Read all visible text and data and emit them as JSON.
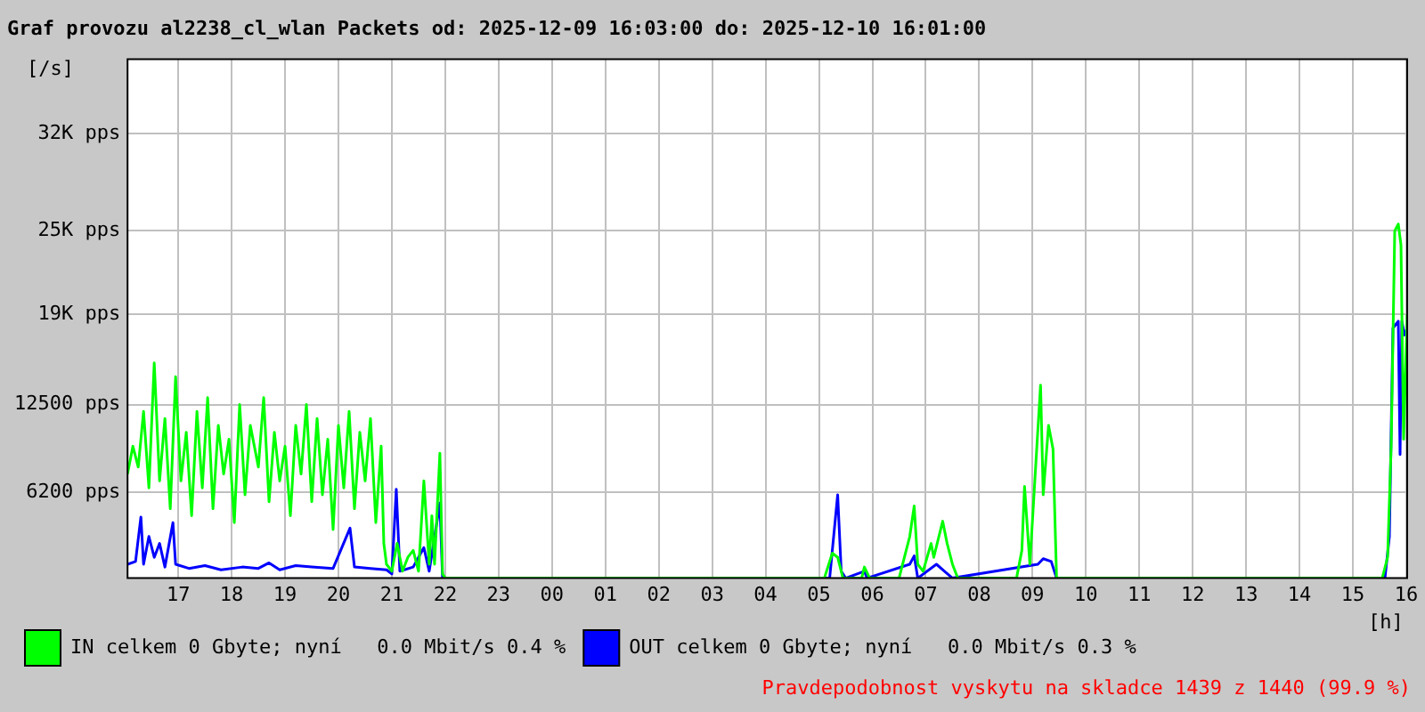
{
  "chart_data": {
    "type": "line",
    "title": "Graf provozu al2238_cl_wlan Packets od: 2025-12-09 16:03:00 do: 2025-12-10 16:01:00",
    "ylabel": "[/s]",
    "xlabel": "[h]",
    "xlim": [
      "2025-12-09T16:03",
      "2025-12-10T16:01"
    ],
    "ylim": [
      0,
      37375
    ],
    "xticks": [
      {
        "value": "2025-12-09T17:00",
        "label": "17"
      },
      {
        "value": "2025-12-09T18:00",
        "label": "18"
      },
      {
        "value": "2025-12-09T19:00",
        "label": "19"
      },
      {
        "value": "2025-12-09T20:00",
        "label": "20"
      },
      {
        "value": "2025-12-09T21:00",
        "label": "21"
      },
      {
        "value": "2025-12-09T22:00",
        "label": "22"
      },
      {
        "value": "2025-12-09T23:00",
        "label": "23"
      },
      {
        "value": "2025-12-10T00:00",
        "label": "00"
      },
      {
        "value": "2025-12-10T01:00",
        "label": "01"
      },
      {
        "value": "2025-12-10T02:00",
        "label": "02"
      },
      {
        "value": "2025-12-10T03:00",
        "label": "03"
      },
      {
        "value": "2025-12-10T04:00",
        "label": "04"
      },
      {
        "value": "2025-12-10T05:00",
        "label": "05"
      },
      {
        "value": "2025-12-10T06:00",
        "label": "06"
      },
      {
        "value": "2025-12-10T07:00",
        "label": "07"
      },
      {
        "value": "2025-12-10T08:00",
        "label": "08"
      },
      {
        "value": "2025-12-10T09:00",
        "label": "09"
      },
      {
        "value": "2025-12-10T10:00",
        "label": "10"
      },
      {
        "value": "2025-12-10T11:00",
        "label": "11"
      },
      {
        "value": "2025-12-10T12:00",
        "label": "12"
      },
      {
        "value": "2025-12-10T13:00",
        "label": "13"
      },
      {
        "value": "2025-12-10T14:00",
        "label": "14"
      },
      {
        "value": "2025-12-10T15:00",
        "label": "15"
      },
      {
        "value": "2025-12-10T16:00",
        "label": "16"
      }
    ],
    "yticks": [
      {
        "value": 6200,
        "label": "6200 pps"
      },
      {
        "value": 12500,
        "label": "12500 pps"
      },
      {
        "value": 19000,
        "label": "19K pps"
      },
      {
        "value": 25000,
        "label": "25K pps"
      },
      {
        "value": 32000,
        "label": "32K pps"
      }
    ],
    "grid": true,
    "legend": "bottom",
    "series": [
      {
        "name": "IN celkem 0 Gbyte; nyní   0.0 Mbit/s 0.4 %",
        "color": "#00ff00",
        "x": [
          "2025-12-09T16:03",
          "2025-12-09T16:09",
          "2025-12-09T16:15",
          "2025-12-09T16:21",
          "2025-12-09T16:27",
          "2025-12-09T16:33",
          "2025-12-09T16:39",
          "2025-12-09T16:45",
          "2025-12-09T16:51",
          "2025-12-09T16:57",
          "2025-12-09T17:03",
          "2025-12-09T17:09",
          "2025-12-09T17:15",
          "2025-12-09T17:21",
          "2025-12-09T17:27",
          "2025-12-09T17:33",
          "2025-12-09T17:39",
          "2025-12-09T17:45",
          "2025-12-09T17:51",
          "2025-12-09T17:57",
          "2025-12-09T18:03",
          "2025-12-09T18:09",
          "2025-12-09T18:15",
          "2025-12-09T18:21",
          "2025-12-09T18:30",
          "2025-12-09T18:36",
          "2025-12-09T18:42",
          "2025-12-09T18:48",
          "2025-12-09T18:54",
          "2025-12-09T19:00",
          "2025-12-09T19:06",
          "2025-12-09T19:12",
          "2025-12-09T19:18",
          "2025-12-09T19:24",
          "2025-12-09T19:30",
          "2025-12-09T19:36",
          "2025-12-09T19:42",
          "2025-12-09T19:48",
          "2025-12-09T19:54",
          "2025-12-09T20:00",
          "2025-12-09T20:06",
          "2025-12-09T20:12",
          "2025-12-09T20:18",
          "2025-12-09T20:24",
          "2025-12-09T20:30",
          "2025-12-09T20:36",
          "2025-12-09T20:42",
          "2025-12-09T20:48",
          "2025-12-09T20:51",
          "2025-12-09T20:54",
          "2025-12-09T21:00",
          "2025-12-09T21:06",
          "2025-12-09T21:12",
          "2025-12-09T21:18",
          "2025-12-09T21:24",
          "2025-12-09T21:30",
          "2025-12-09T21:36",
          "2025-12-09T21:42",
          "2025-12-09T21:45",
          "2025-12-09T21:48",
          "2025-12-09T21:54",
          "2025-12-09T21:57",
          "2025-12-09T22:00",
          "2025-12-10T05:06",
          "2025-12-10T05:15",
          "2025-12-10T05:21",
          "2025-12-10T05:27",
          "2025-12-10T05:48",
          "2025-12-10T05:51",
          "2025-12-10T05:57",
          "2025-12-10T06:30",
          "2025-12-10T06:36",
          "2025-12-10T06:42",
          "2025-12-10T06:47",
          "2025-12-10T06:51",
          "2025-12-10T06:57",
          "2025-12-10T07:06",
          "2025-12-10T07:09",
          "2025-12-10T07:19",
          "2025-12-10T07:24",
          "2025-12-10T07:30",
          "2025-12-10T07:36",
          "2025-12-10T08:42",
          "2025-12-10T08:48",
          "2025-12-10T08:51",
          "2025-12-10T08:57",
          "2025-12-10T09:03",
          "2025-12-10T09:09",
          "2025-12-10T09:12",
          "2025-12-10T09:18",
          "2025-12-10T09:23",
          "2025-12-10T09:27",
          "2025-12-10T15:33",
          "2025-12-10T15:39",
          "2025-12-10T15:43",
          "2025-12-10T15:47",
          "2025-12-10T15:51",
          "2025-12-10T15:54",
          "2025-12-10T15:57",
          "2025-12-10T16:01"
        ],
        "values": [
          7500,
          9500,
          8000,
          12000,
          6500,
          15500,
          7000,
          11500,
          5000,
          14500,
          7000,
          10500,
          4500,
          12000,
          6500,
          13000,
          5000,
          11000,
          7500,
          10000,
          4000,
          12500,
          6000,
          11000,
          8000,
          13000,
          5500,
          10500,
          7000,
          9500,
          4500,
          11000,
          7500,
          12500,
          5500,
          11500,
          6000,
          10000,
          3500,
          11000,
          6500,
          12000,
          5000,
          10500,
          7000,
          11500,
          4000,
          9500,
          2500,
          1000,
          500,
          2500,
          500,
          1500,
          2000,
          500,
          7000,
          1000,
          4500,
          1000,
          9000,
          300,
          0,
          0,
          1800,
          1500,
          0,
          0,
          800,
          0,
          0,
          1500,
          3000,
          5200,
          1000,
          500,
          2500,
          1500,
          4100,
          2500,
          1000,
          0,
          0,
          2000,
          6600,
          1000,
          7500,
          13900,
          6000,
          11000,
          9300,
          0,
          0,
          1500,
          9500,
          25000,
          25500,
          24000,
          10000,
          19000
        ]
      },
      {
        "name": "OUT celkem 0 Gbyte; nyní   0.0 Mbit/s 0.3 %",
        "color": "#0000ff",
        "x": [
          "2025-12-09T16:03",
          "2025-12-09T16:12",
          "2025-12-09T16:18",
          "2025-12-09T16:21",
          "2025-12-09T16:27",
          "2025-12-09T16:33",
          "2025-12-09T16:39",
          "2025-12-09T16:45",
          "2025-12-09T16:54",
          "2025-12-09T16:57",
          "2025-12-09T17:12",
          "2025-12-09T17:30",
          "2025-12-09T17:48",
          "2025-12-09T18:12",
          "2025-12-09T18:30",
          "2025-12-09T18:42",
          "2025-12-09T18:54",
          "2025-12-09T19:12",
          "2025-12-09T19:30",
          "2025-12-09T19:54",
          "2025-12-09T20:13",
          "2025-12-09T20:18",
          "2025-12-09T20:36",
          "2025-12-09T20:54",
          "2025-12-09T21:00",
          "2025-12-09T21:05",
          "2025-12-09T21:09",
          "2025-12-09T21:24",
          "2025-12-09T21:36",
          "2025-12-09T21:42",
          "2025-12-09T21:54",
          "2025-12-09T21:57",
          "2025-12-10T05:12",
          "2025-12-10T05:15",
          "2025-12-10T05:21",
          "2025-12-10T05:25",
          "2025-12-10T05:30",
          "2025-12-10T05:51",
          "2025-12-10T05:54",
          "2025-12-10T06:42",
          "2025-12-10T06:47",
          "2025-12-10T06:51",
          "2025-12-10T07:12",
          "2025-12-10T07:21",
          "2025-12-10T07:30",
          "2025-12-10T09:06",
          "2025-12-10T09:12",
          "2025-12-10T09:21",
          "2025-12-10T09:27",
          "2025-12-10T15:36",
          "2025-12-10T15:41",
          "2025-12-10T15:45",
          "2025-12-10T15:51",
          "2025-12-10T15:53",
          "2025-12-10T15:55",
          "2025-12-10T15:58",
          "2025-12-10T16:01"
        ],
        "values": [
          1000,
          1200,
          4400,
          1000,
          3000,
          1500,
          2500,
          800,
          4000,
          1000,
          700,
          900,
          600,
          800,
          700,
          1100,
          600,
          900,
          800,
          700,
          3600,
          800,
          700,
          600,
          300,
          6400,
          500,
          800,
          2200,
          500,
          5400,
          0,
          0,
          2000,
          6000,
          500,
          0,
          500,
          0,
          1000,
          1600,
          0,
          1000,
          500,
          0,
          1000,
          1400,
          1200,
          0,
          0,
          3000,
          18000,
          18500,
          8900,
          18500,
          17500,
          18000
        ]
      }
    ],
    "annotations": [
      "Pravdepodobnost vyskytu na skladce 1439 z 1440 (99.9 %)"
    ]
  }
}
